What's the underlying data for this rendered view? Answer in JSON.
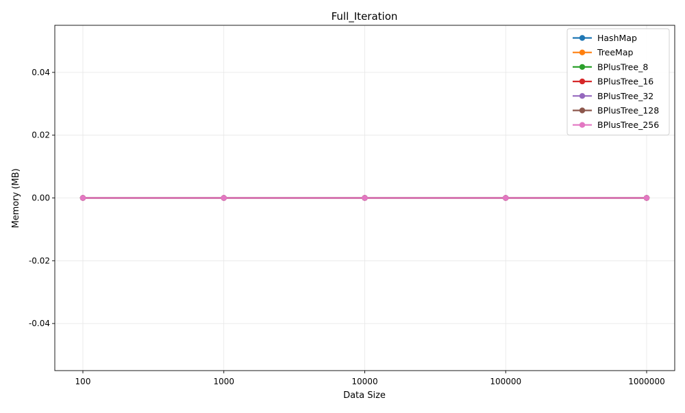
{
  "chart_data": {
    "type": "line",
    "title": "Full_Iteration",
    "xlabel": "Data Size",
    "ylabel": "Memory (MB)",
    "x_scale": "categorical",
    "categories": [
      "100",
      "1000",
      "10000",
      "100000",
      "1000000"
    ],
    "yticks": [
      0.04,
      0.02,
      0.0,
      -0.02,
      -0.04
    ],
    "ytick_labels": [
      "0.04",
      "0.02",
      "0.00",
      "-0.02",
      "-0.04"
    ],
    "ylim": [
      -0.055,
      0.055
    ],
    "grid": true,
    "legend_position": "top-right",
    "series": [
      {
        "name": "HashMap",
        "color": "#1f77b4",
        "values": [
          0,
          0,
          0,
          0,
          0
        ]
      },
      {
        "name": "TreeMap",
        "color": "#ff7f0e",
        "values": [
          0,
          0,
          0,
          0,
          0
        ]
      },
      {
        "name": "BPlusTree_8",
        "color": "#2ca02c",
        "values": [
          0,
          0,
          0,
          0,
          0
        ]
      },
      {
        "name": "BPlusTree_16",
        "color": "#d62728",
        "values": [
          0,
          0,
          0,
          0,
          0
        ]
      },
      {
        "name": "BPlusTree_32",
        "color": "#9467bd",
        "values": [
          0,
          0,
          0,
          0,
          0
        ]
      },
      {
        "name": "BPlusTree_128",
        "color": "#8c564b",
        "values": [
          0,
          0,
          0,
          0,
          0
        ]
      },
      {
        "name": "BPlusTree_256",
        "color": "#e377c2",
        "values": [
          0,
          0,
          0,
          0,
          0
        ]
      }
    ]
  }
}
